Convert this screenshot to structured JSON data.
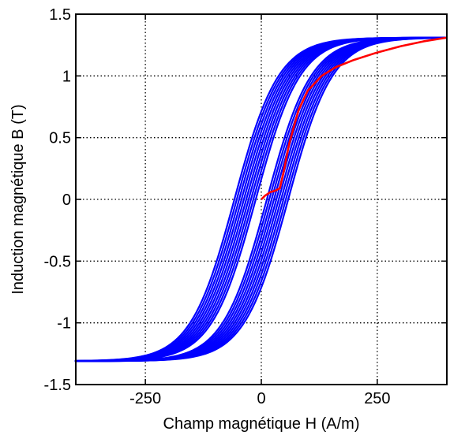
{
  "chart_data": {
    "type": "line",
    "title": "",
    "xlabel": "Champ magnétique H (A/m)",
    "ylabel": "Induction magnétique B (T)",
    "xlim": [
      -400,
      400
    ],
    "ylim": [
      -1.5,
      1.5
    ],
    "xticks": [
      -250,
      0,
      250
    ],
    "xtick_labels": [
      "-250",
      "0",
      "250"
    ],
    "yticks": [
      -1.5,
      -1,
      -0.5,
      0,
      0.5,
      1,
      1.5
    ],
    "ytick_labels": [
      "-1.5",
      "-1",
      "-0.5",
      "0",
      "0.5",
      "1",
      "1.5"
    ],
    "grid": true,
    "grid_style": "dotted",
    "colors": {
      "loops": "#0000ff",
      "first_magnetization": "#ff0000"
    },
    "hysteresis_loops": {
      "description_free": true,
      "count": 10,
      "outer_coercive_field": 58,
      "inner_coercive_field": 12,
      "saturation_H": 400,
      "saturation_B": 1.31
    },
    "series": [
      {
        "x": [
          0,
          8,
          20,
          30,
          40,
          48,
          60,
          80,
          100,
          130,
          160,
          200,
          250,
          300,
          350,
          400
        ],
        "y": [
          0.0,
          0.03,
          0.06,
          0.07,
          0.09,
          0.22,
          0.45,
          0.72,
          0.88,
          1.0,
          1.07,
          1.13,
          1.19,
          1.24,
          1.28,
          1.31
        ]
      }
    ]
  }
}
